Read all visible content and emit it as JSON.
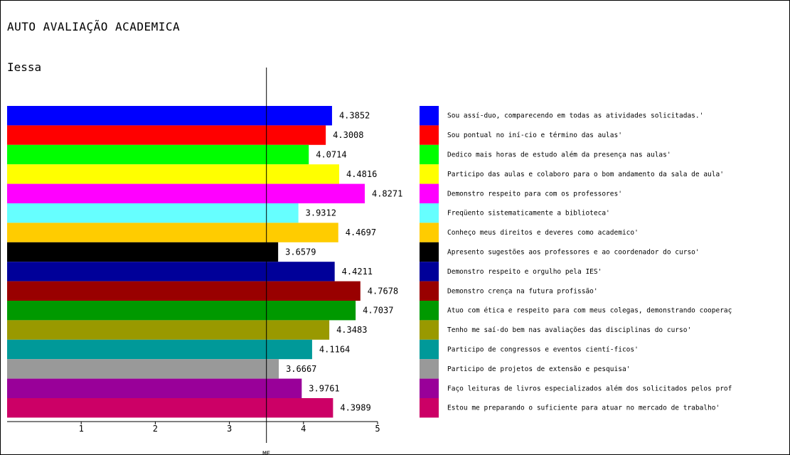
{
  "page": {
    "title": "AUTO AVALIAÇÃO ACADEMICA",
    "subtitle": "Iessa"
  },
  "chart_data": {
    "type": "bar",
    "orientation": "horizontal",
    "title": "AUTO AVALIAÇÃO ACADEMICA",
    "subtitle": "Iessa",
    "xlabel": "",
    "ylabel": "",
    "xlim": [
      0,
      5
    ],
    "x_ticks": [
      1,
      2,
      3,
      4,
      5
    ],
    "reference_line": {
      "label": "ME",
      "value": 3.5
    },
    "value_labels": [
      "4.3852",
      "4.3008",
      "4.0714",
      "4.4816",
      "4.8271",
      "3.9312",
      "4.4697",
      "3.6579",
      "4.4211",
      "4.7678",
      "4.7037",
      "4.3483",
      "4.1164",
      "3.6667",
      "3.9761",
      "4.3989"
    ],
    "categories": [
      "Sou assí-duo, comparecendo em todas as atividades solicitadas.'",
      "Sou pontual no iní-cio e término das aulas'",
      "Dedico mais horas de estudo além da presença nas aulas'",
      "Participo das aulas e colaboro para o bom andamento da sala de aula'",
      "Demonstro respeito para com os professores'",
      "Freqüento sistematicamente a biblioteca'",
      "Conheço meus direitos e deveres como academico'",
      "Apresento sugestões aos professores e ao coordenador do curso'",
      "Demonstro respeito e orgulho pela IES'",
      "Demonstro crença na futura profissão'",
      "Atuo com ética e respeito para com meus colegas, demonstrando cooperaç",
      "Tenho me saí-do bem nas avaliações das disciplinas do curso'",
      "Participo de congressos e eventos cientí-ficos'",
      "Participo de projetos de extensão e pesquisa'",
      "Faço leituras de livros especializados além dos solicitados pelos prof",
      "Estou me preparando o suficiente para atuar no mercado de trabalho'"
    ],
    "values": [
      4.3852,
      4.3008,
      4.0714,
      4.4816,
      4.8271,
      3.9312,
      4.4697,
      3.6579,
      4.4211,
      4.7678,
      4.7037,
      4.3483,
      4.1164,
      3.6667,
      3.9761,
      4.3989
    ],
    "colors": [
      "#0000ff",
      "#ff0000",
      "#00ff00",
      "#ffff00",
      "#ff00ff",
      "#66ffff",
      "#ffcc00",
      "#000000",
      "#000099",
      "#990000",
      "#009900",
      "#999900",
      "#009999",
      "#999999",
      "#990099",
      "#cc0066"
    ],
    "legend_position": "right",
    "grid": false
  }
}
